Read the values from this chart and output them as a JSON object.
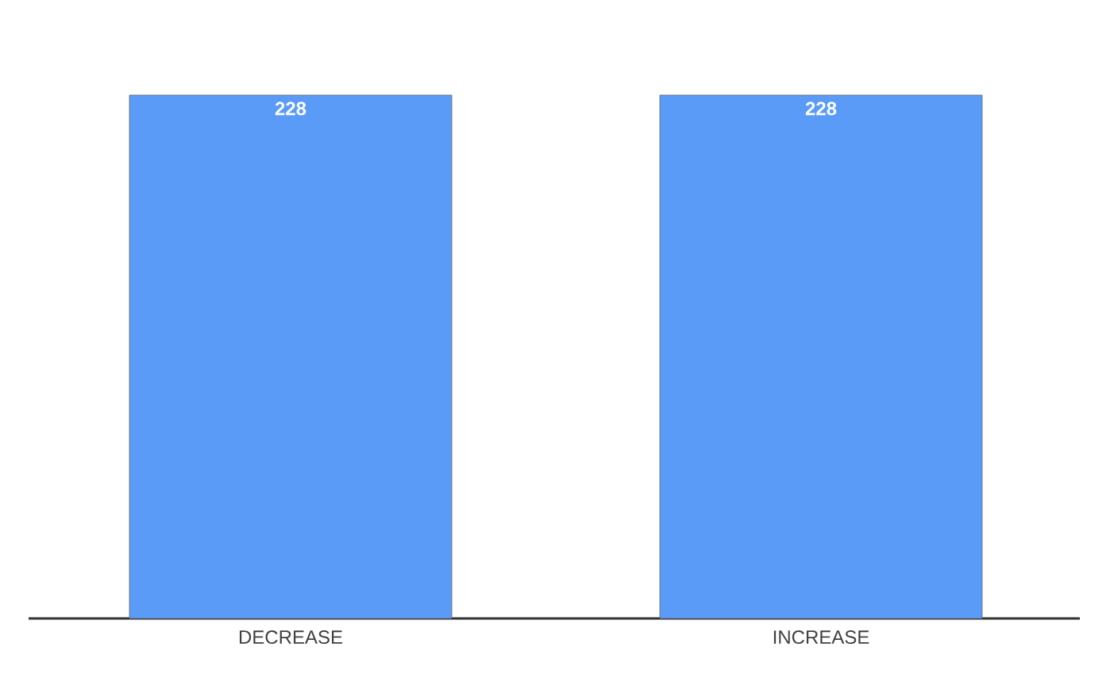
{
  "chart_data": {
    "type": "bar",
    "categories": [
      "DECREASE",
      "INCREASE"
    ],
    "values": [
      228,
      228
    ],
    "color": "#5b9bf8",
    "data_labels": true
  }
}
